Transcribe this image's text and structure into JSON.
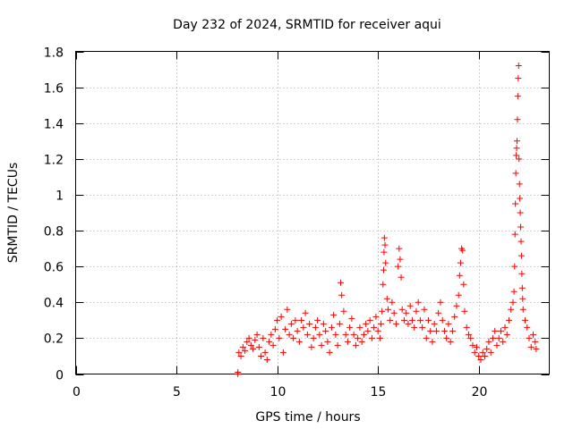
{
  "chart_data": {
    "type": "scatter",
    "title": "Day 232 of 2024, SRMTID for receiver aqui",
    "xlabel": "GPS time / hours",
    "ylabel": "SRMTID / TECUs",
    "xlim": [
      0,
      23.5
    ],
    "ylim": [
      0,
      1.8
    ],
    "xticks": [
      0,
      5,
      10,
      15,
      20
    ],
    "xtick_labels": [
      "0",
      "5",
      "10",
      "15",
      "20"
    ],
    "yticks": [
      0,
      0.2,
      0.4,
      0.6,
      0.8,
      1.0,
      1.2,
      1.4,
      1.6,
      1.8
    ],
    "ytick_labels": [
      "0",
      "0.2",
      "0.4",
      "0.6",
      "0.8",
      "1",
      "1.2",
      "1.4",
      "1.6",
      "1.8"
    ],
    "grid": true,
    "marker": "+",
    "color": "#ff0000",
    "series": [
      {
        "name": "SRMTID",
        "points": [
          [
            8.05,
            0.0
          ],
          [
            8.05,
            0.01
          ],
          [
            8.1,
            0.12
          ],
          [
            8.2,
            0.1
          ],
          [
            8.3,
            0.15
          ],
          [
            8.4,
            0.13
          ],
          [
            8.5,
            0.18
          ],
          [
            8.6,
            0.2
          ],
          [
            8.7,
            0.16
          ],
          [
            8.8,
            0.14
          ],
          [
            8.9,
            0.19
          ],
          [
            9.0,
            0.22
          ],
          [
            9.1,
            0.15
          ],
          [
            9.2,
            0.1
          ],
          [
            9.3,
            0.2
          ],
          [
            9.4,
            0.12
          ],
          [
            9.5,
            0.08
          ],
          [
            9.6,
            0.18
          ],
          [
            9.7,
            0.22
          ],
          [
            9.8,
            0.16
          ],
          [
            9.9,
            0.25
          ],
          [
            10.0,
            0.3
          ],
          [
            10.1,
            0.2
          ],
          [
            10.2,
            0.32
          ],
          [
            10.3,
            0.12
          ],
          [
            10.4,
            0.25
          ],
          [
            10.5,
            0.36
          ],
          [
            10.6,
            0.22
          ],
          [
            10.7,
            0.28
          ],
          [
            10.8,
            0.2
          ],
          [
            10.9,
            0.3
          ],
          [
            11.0,
            0.24
          ],
          [
            11.1,
            0.18
          ],
          [
            11.2,
            0.3
          ],
          [
            11.3,
            0.26
          ],
          [
            11.4,
            0.34
          ],
          [
            11.5,
            0.22
          ],
          [
            11.6,
            0.28
          ],
          [
            11.7,
            0.15
          ],
          [
            11.8,
            0.2
          ],
          [
            11.9,
            0.26
          ],
          [
            12.0,
            0.3
          ],
          [
            12.1,
            0.22
          ],
          [
            12.2,
            0.16
          ],
          [
            12.3,
            0.28
          ],
          [
            12.4,
            0.24
          ],
          [
            12.5,
            0.18
          ],
          [
            12.6,
            0.12
          ],
          [
            12.7,
            0.26
          ],
          [
            12.8,
            0.33
          ],
          [
            12.9,
            0.22
          ],
          [
            13.0,
            0.16
          ],
          [
            13.1,
            0.28
          ],
          [
            13.15,
            0.51
          ],
          [
            13.2,
            0.44
          ],
          [
            13.3,
            0.35
          ],
          [
            13.4,
            0.22
          ],
          [
            13.5,
            0.18
          ],
          [
            13.6,
            0.26
          ],
          [
            13.7,
            0.31
          ],
          [
            13.8,
            0.22
          ],
          [
            13.9,
            0.16
          ],
          [
            14.0,
            0.2
          ],
          [
            14.1,
            0.26
          ],
          [
            14.2,
            0.18
          ],
          [
            14.3,
            0.22
          ],
          [
            14.4,
            0.28
          ],
          [
            14.5,
            0.24
          ],
          [
            14.6,
            0.3
          ],
          [
            14.7,
            0.2
          ],
          [
            14.8,
            0.26
          ],
          [
            14.9,
            0.32
          ],
          [
            15.0,
            0.24
          ],
          [
            15.1,
            0.2
          ],
          [
            15.15,
            0.28
          ],
          [
            15.2,
            0.35
          ],
          [
            15.25,
            0.5
          ],
          [
            15.28,
            0.58
          ],
          [
            15.3,
            0.68
          ],
          [
            15.32,
            0.76
          ],
          [
            15.35,
            0.72
          ],
          [
            15.38,
            0.62
          ],
          [
            15.45,
            0.42
          ],
          [
            15.5,
            0.36
          ],
          [
            15.6,
            0.3
          ],
          [
            15.7,
            0.4
          ],
          [
            15.8,
            0.34
          ],
          [
            15.9,
            0.28
          ],
          [
            16.0,
            0.6
          ],
          [
            16.05,
            0.7
          ],
          [
            16.1,
            0.64
          ],
          [
            16.15,
            0.54
          ],
          [
            16.2,
            0.36
          ],
          [
            16.3,
            0.3
          ],
          [
            16.4,
            0.34
          ],
          [
            16.5,
            0.28
          ],
          [
            16.6,
            0.38
          ],
          [
            16.7,
            0.3
          ],
          [
            16.8,
            0.26
          ],
          [
            16.9,
            0.35
          ],
          [
            17.0,
            0.4
          ],
          [
            17.1,
            0.3
          ],
          [
            17.2,
            0.26
          ],
          [
            17.3,
            0.36
          ],
          [
            17.4,
            0.2
          ],
          [
            17.5,
            0.3
          ],
          [
            17.6,
            0.24
          ],
          [
            17.7,
            0.18
          ],
          [
            17.8,
            0.28
          ],
          [
            17.9,
            0.24
          ],
          [
            18.0,
            0.34
          ],
          [
            18.1,
            0.4
          ],
          [
            18.2,
            0.3
          ],
          [
            18.3,
            0.24
          ],
          [
            18.4,
            0.2
          ],
          [
            18.5,
            0.28
          ],
          [
            18.6,
            0.18
          ],
          [
            18.7,
            0.24
          ],
          [
            18.8,
            0.32
          ],
          [
            18.9,
            0.38
          ],
          [
            19.0,
            0.44
          ],
          [
            19.05,
            0.55
          ],
          [
            19.1,
            0.62
          ],
          [
            19.15,
            0.7
          ],
          [
            19.2,
            0.69
          ],
          [
            19.25,
            0.5
          ],
          [
            19.3,
            0.35
          ],
          [
            19.4,
            0.26
          ],
          [
            19.5,
            0.22
          ],
          [
            19.6,
            0.2
          ],
          [
            19.7,
            0.16
          ],
          [
            19.8,
            0.12
          ],
          [
            19.9,
            0.15
          ],
          [
            20.0,
            0.1
          ],
          [
            20.1,
            0.08
          ],
          [
            20.2,
            0.12
          ],
          [
            20.3,
            0.1
          ],
          [
            20.4,
            0.14
          ],
          [
            20.5,
            0.18
          ],
          [
            20.6,
            0.12
          ],
          [
            20.7,
            0.2
          ],
          [
            20.8,
            0.24
          ],
          [
            20.9,
            0.16
          ],
          [
            21.0,
            0.2
          ],
          [
            21.1,
            0.24
          ],
          [
            21.2,
            0.18
          ],
          [
            21.3,
            0.26
          ],
          [
            21.4,
            0.22
          ],
          [
            21.5,
            0.3
          ],
          [
            21.6,
            0.36
          ],
          [
            21.7,
            0.4
          ],
          [
            21.75,
            0.46
          ],
          [
            21.78,
            0.6
          ],
          [
            21.8,
            0.78
          ],
          [
            21.82,
            0.95
          ],
          [
            21.84,
            1.12
          ],
          [
            21.86,
            1.22
          ],
          [
            21.88,
            1.26
          ],
          [
            21.9,
            1.3
          ],
          [
            21.92,
            1.42
          ],
          [
            21.94,
            1.55
          ],
          [
            21.96,
            1.65
          ],
          [
            21.98,
            1.72
          ],
          [
            22.0,
            1.2
          ],
          [
            22.02,
            1.06
          ],
          [
            22.04,
            0.98
          ],
          [
            22.06,
            0.9
          ],
          [
            22.08,
            0.82
          ],
          [
            22.1,
            0.74
          ],
          [
            22.12,
            0.66
          ],
          [
            22.14,
            0.56
          ],
          [
            22.16,
            0.48
          ],
          [
            22.18,
            0.42
          ],
          [
            22.2,
            0.36
          ],
          [
            22.3,
            0.3
          ],
          [
            22.4,
            0.26
          ],
          [
            22.5,
            0.2
          ],
          [
            22.6,
            0.15
          ],
          [
            22.7,
            0.22
          ],
          [
            22.8,
            0.18
          ],
          [
            22.85,
            0.14
          ]
        ]
      }
    ]
  }
}
